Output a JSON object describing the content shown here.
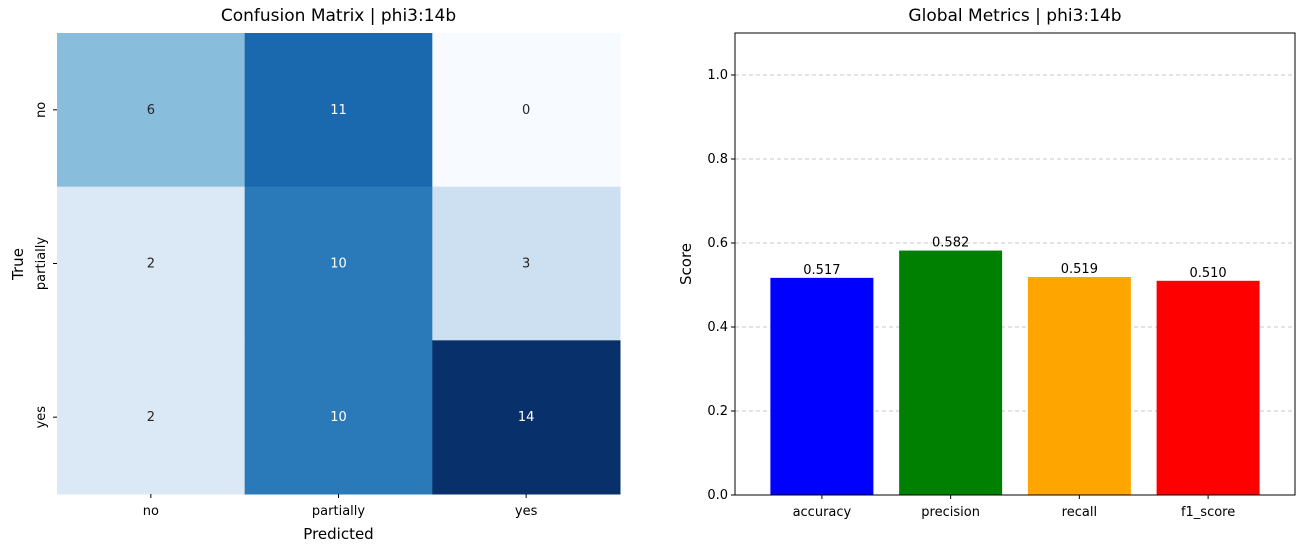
{
  "chart_data": [
    {
      "type": "heatmap",
      "title": "Confusion Matrix | phi3:14b",
      "xlabel": "Predicted",
      "ylabel": "True",
      "x_categories": [
        "no",
        "partially",
        "yes"
      ],
      "y_categories": [
        "no",
        "partially",
        "yes"
      ],
      "values": [
        [
          6,
          11,
          0
        ],
        [
          2,
          10,
          3
        ],
        [
          2,
          10,
          14
        ]
      ],
      "colormap": "Blues",
      "colorbar": false
    },
    {
      "type": "bar",
      "title": "Global Metrics | phi3:14b",
      "xlabel": "",
      "ylabel": "Score",
      "categories": [
        "accuracy",
        "precision",
        "recall",
        "f1_score"
      ],
      "values": [
        0.517,
        0.582,
        0.519,
        0.51
      ],
      "data_labels": [
        "0.517",
        "0.582",
        "0.519",
        "0.510"
      ],
      "colors": [
        "#0000ff",
        "#008000",
        "#ffa500",
        "#ff0000"
      ],
      "ylim": [
        0,
        1.1
      ],
      "yticks": [
        "0.0",
        "0.2",
        "0.4",
        "0.6",
        "0.8",
        "1.0"
      ],
      "grid": "y-dashed"
    }
  ]
}
